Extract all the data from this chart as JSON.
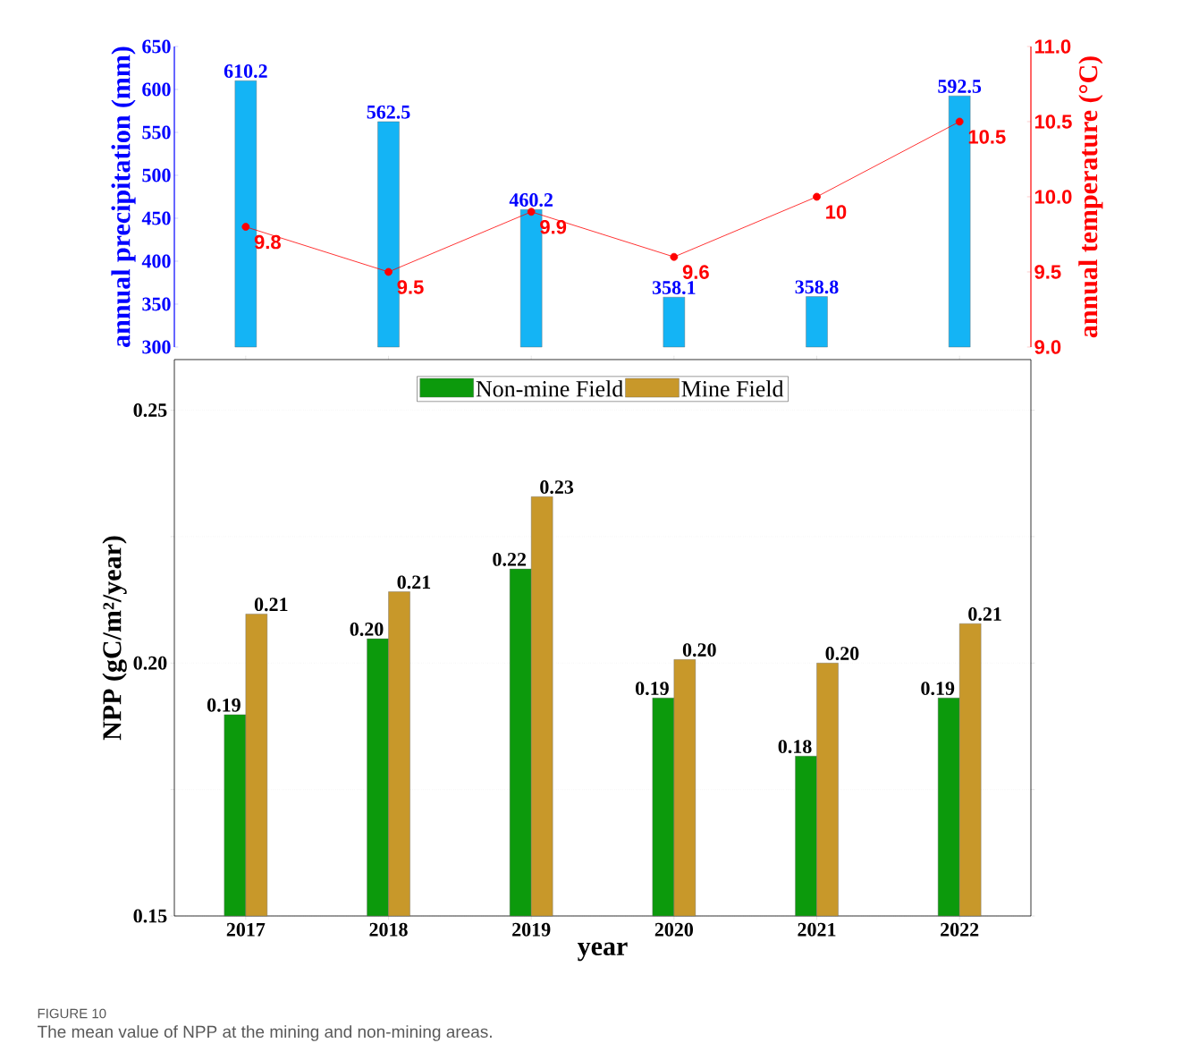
{
  "chart_data": [
    {
      "type": "bar",
      "categories": [
        "2017",
        "2018",
        "2019",
        "2020",
        "2021",
        "2022"
      ],
      "ylabel": "annual precipitation (mm)",
      "y2label": "annual temperature (°C)",
      "ylim": [
        300,
        650
      ],
      "yticks": [
        300,
        350,
        400,
        450,
        500,
        550,
        600,
        650
      ],
      "y2lim": [
        9,
        11
      ],
      "y2ticks": [
        {
          "value": 9,
          "label": "9.0"
        },
        {
          "value": 9.5,
          "label": "9.5"
        },
        {
          "value": 10,
          "label": "10.0"
        },
        {
          "value": 10.5,
          "label": "10.5"
        },
        {
          "value": 11,
          "label": "11.0"
        }
      ],
      "tick_labels": "y",
      "data_labels": true,
      "marker": "circle",
      "series": [
        {
          "type": "bar",
          "color": "#14b4f5",
          "values": [
            610.2,
            562.5,
            460.2,
            358.1,
            358.8,
            592.5
          ]
        },
        {
          "type": "line",
          "axis": "y2",
          "color": "#ff0000",
          "values": [
            9.8,
            9.5,
            9.9,
            9.6,
            10,
            10.5
          ]
        }
      ]
    },
    {
      "type": "bar",
      "categories": [
        "2017",
        "2018",
        "2019",
        "2020",
        "2021",
        "2022"
      ],
      "xlabel": "year",
      "ylabel": "NPP (gC/m²/year)",
      "ylim": [
        0.15,
        0.26
      ],
      "yticks": [
        {
          "value": 0.15,
          "label": "0.15"
        },
        {
          "value": 0.175,
          "label": null
        },
        {
          "value": 0.2,
          "label": "0.20"
        },
        {
          "value": 0.225,
          "label": null
        },
        {
          "value": 0.25,
          "label": "0.25"
        }
      ],
      "grid": "y",
      "legend": "top",
      "annotations": [
        "FIGURE 10",
        "The mean value of NPP at the mining and non-mining areas."
      ],
      "series": [
        {
          "name": "Non-mine Field",
          "color": "#0c9a0c",
          "values": [
            0.1898,
            0.2048,
            0.2186,
            0.1931,
            0.1816,
            0.1931
          ],
          "value_labels": [
            "0.19",
            "0.20",
            "0.22",
            "0.19",
            "0.18",
            "0.19"
          ]
        },
        {
          "name": "Mine Field",
          "color": "#c8982a",
          "values": [
            0.2097,
            0.2141,
            0.2329,
            0.2007,
            0.2,
            0.2078
          ],
          "value_labels": [
            "0.21",
            "0.21",
            "0.23",
            "0.20",
            "0.20",
            "0.21"
          ]
        }
      ]
    }
  ]
}
